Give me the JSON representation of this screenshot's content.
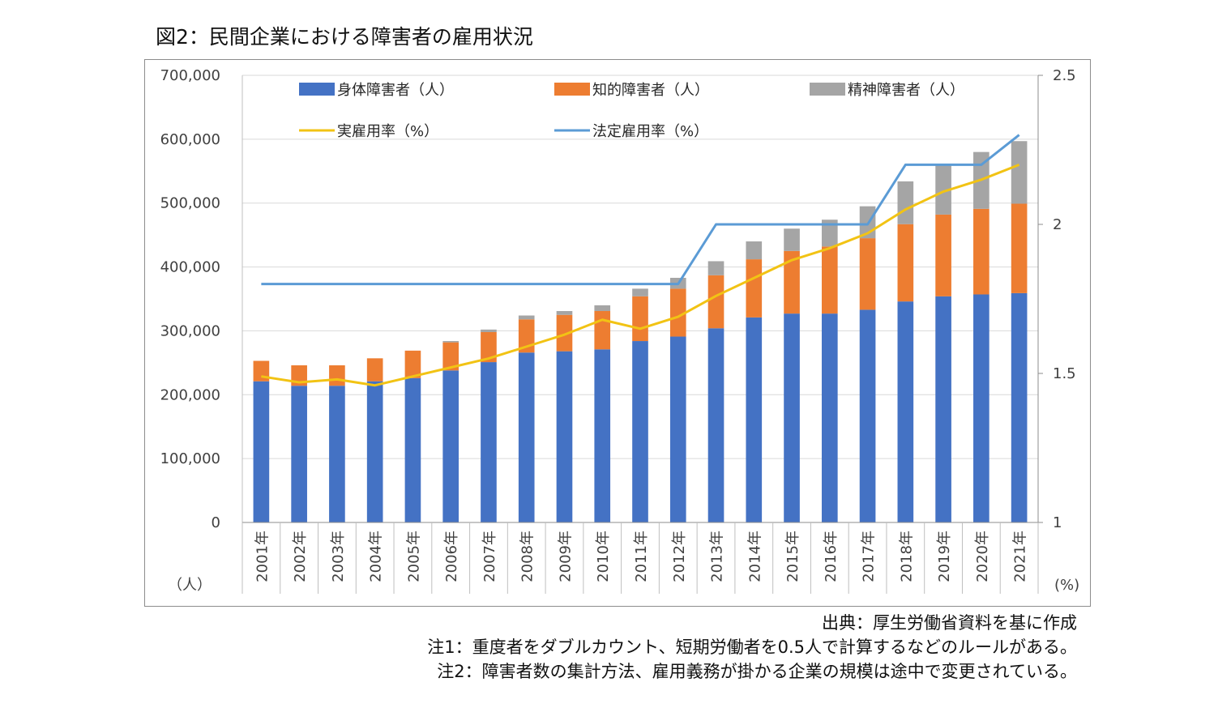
{
  "title": "図2：民間企業における障害者の雇用状況",
  "notes": {
    "source": "出典：厚生労働省資料を基に作成",
    "note1": "注1：重度者をダブルカウント、短期労働者を0.5人で計算するなどのルールがある。",
    "note2": "注2：障害者数の集計方法、雇用義務が掛かる企業の規模は途中で変更されている。"
  },
  "colors": {
    "physical": "#4472C4",
    "intellectual": "#ED7D31",
    "mental": "#A5A5A5",
    "actual_rate": "#F2C314",
    "legal_rate": "#5B9BD5",
    "grid": "#d9d9d9"
  },
  "chart_data": {
    "type": "bar",
    "stacked": true,
    "title": "",
    "categories": [
      "2001年",
      "2002年",
      "2003年",
      "2004年",
      "2005年",
      "2006年",
      "2007年",
      "2008年",
      "2009年",
      "2010年",
      "2011年",
      "2012年",
      "2013年",
      "2014年",
      "2015年",
      "2016年",
      "2017年",
      "2018年",
      "2019年",
      "2020年",
      "2021年"
    ],
    "y_left": {
      "unit_label": "（人）",
      "ylim": [
        0,
        700000
      ],
      "ticks": [
        "0",
        "100,000",
        "200,000",
        "300,000",
        "400,000",
        "500,000",
        "600,000",
        "700,000"
      ]
    },
    "y_right": {
      "unit_label": "(%)",
      "ylim": [
        1,
        2.5
      ],
      "ticks": [
        "1",
        "1.5",
        "2",
        "2.5"
      ]
    },
    "series": [
      {
        "name": "身体障害者（人）",
        "type": "bar",
        "axis": "left",
        "values": [
          221000,
          214000,
          214000,
          221000,
          226000,
          238000,
          251000,
          266000,
          268000,
          271000,
          284000,
          291000,
          304000,
          321000,
          327000,
          327000,
          333000,
          346000,
          354000,
          357000,
          359000
        ]
      },
      {
        "name": "知的障害者（人）",
        "type": "bar",
        "axis": "left",
        "values": [
          32000,
          32000,
          32000,
          36000,
          43000,
          44000,
          47000,
          52000,
          57000,
          60000,
          70000,
          75000,
          83000,
          91000,
          98000,
          105000,
          112000,
          121000,
          128000,
          134000,
          140000
        ]
      },
      {
        "name": "精神障害者（人）",
        "type": "bar",
        "axis": "left",
        "values": [
          0,
          0,
          0,
          0,
          0,
          2000,
          4000,
          6000,
          6000,
          9000,
          12000,
          17000,
          22000,
          28000,
          35000,
          42000,
          50000,
          67000,
          78000,
          89000,
          98000
        ]
      },
      {
        "name": "実雇用率（%）",
        "type": "line",
        "axis": "right",
        "values": [
          1.49,
          1.47,
          1.48,
          1.46,
          1.49,
          1.52,
          1.55,
          1.59,
          1.63,
          1.68,
          1.65,
          1.69,
          1.76,
          1.82,
          1.88,
          1.92,
          1.97,
          2.05,
          2.11,
          2.15,
          2.2
        ]
      },
      {
        "name": "法定雇用率（%）",
        "type": "line",
        "axis": "right",
        "values": [
          1.8,
          1.8,
          1.8,
          1.8,
          1.8,
          1.8,
          1.8,
          1.8,
          1.8,
          1.8,
          1.8,
          1.8,
          2.0,
          2.0,
          2.0,
          2.0,
          2.0,
          2.2,
          2.2,
          2.2,
          2.3
        ]
      }
    ],
    "grid": true,
    "legend": "top"
  }
}
